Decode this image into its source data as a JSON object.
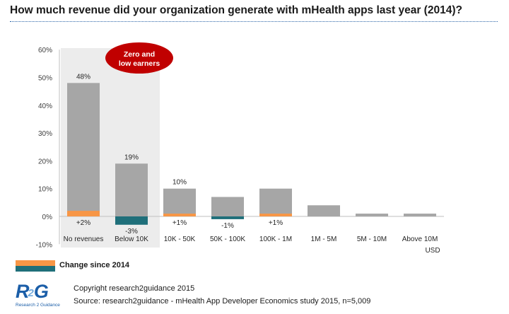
{
  "title": "How much revenue did your organization generate with mHealth apps last year (2014)?",
  "highlight": {
    "label_line1": "Zero and",
    "label_line2": "low earners"
  },
  "legend": {
    "label": "Change since 2014"
  },
  "footer": {
    "logo_mark": "R",
    "logo_mark_two": "2",
    "logo_mark_g": "G",
    "logo_text": "Research 2 Guidance",
    "copyright": "Copyright research2guidance 2015",
    "source": "Source: research2guidance - mHealth App Developer Economics study 2015, n=5,009"
  },
  "chart_data": {
    "type": "bar",
    "title": "How much revenue did your organization generate with mHealth apps last year (2014)?",
    "categories": [
      "No revenues",
      "Below 10K",
      "10K - 50K",
      "50K - 100K",
      "100K - 1M",
      "1M - 5M",
      "5M - 10M",
      "Above 10M"
    ],
    "unit_label": "USD",
    "series": [
      {
        "name": "",
        "values": [
          48,
          19,
          10,
          7,
          10,
          4,
          1,
          1
        ]
      },
      {
        "name": "Change since 2014",
        "values": [
          2,
          -3,
          1,
          -1,
          1,
          0,
          0,
          0
        ]
      }
    ],
    "value_labels": [
      "48%",
      "19%",
      "10%",
      "",
      "",
      "",
      "",
      ""
    ],
    "change_labels": [
      "+2%",
      "-3%",
      "+1%",
      "-1%",
      "+1%",
      "",
      "",
      ""
    ],
    "y_ticks": [
      "-10%",
      "0%",
      "10%",
      "20%",
      "30%",
      "40%",
      "50%",
      "60%"
    ],
    "y_tick_values": [
      -10,
      0,
      10,
      20,
      30,
      40,
      50,
      60
    ],
    "ylim": [
      -10,
      60
    ],
    "highlighted_categories": [
      "No revenues",
      "Below 10K"
    ],
    "colors": {
      "bar": "#a6a6a6",
      "positive_change": "#f79646",
      "negative_change": "#1f6f7a",
      "highlight_bg": "#ececec",
      "badge": "#c00000"
    },
    "grid": false
  }
}
